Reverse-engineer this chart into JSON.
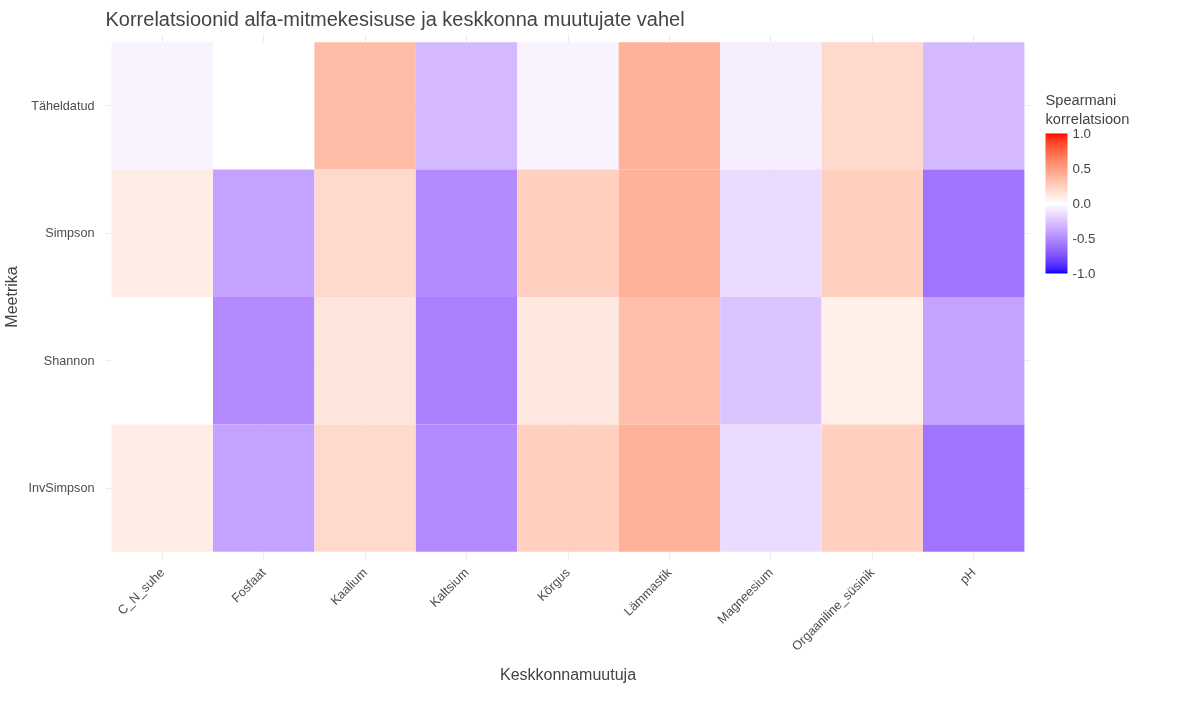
{
  "chart_data": {
    "type": "heatmap",
    "title": "Korrelatsioonid alfa-mitmekesisuse ja keskkonna muutujate vahel",
    "xlabel": "Keskkonnamuutuja",
    "ylabel": "Meetrika",
    "clabel": "Spearmani korrelatsioon",
    "categories": [
      "C_N_suhe",
      "Fosfaat",
      "Kaalium",
      "Kaltsium",
      "Kõrgus",
      "Lämmastik",
      "Magneesium",
      "Orgaaniline_süsinik",
      "pH"
    ],
    "y_categories": [
      "Täheldatud",
      "Simpson",
      "Shannon",
      "InvSimpson"
    ],
    "cells": [
      [
        -0.05,
        0.0,
        0.35,
        -0.3,
        -0.05,
        0.4,
        -0.07,
        0.2,
        -0.3
      ],
      [
        0.1,
        -0.4,
        0.2,
        -0.5,
        0.25,
        0.4,
        -0.15,
        0.25,
        -0.6
      ],
      [
        0.0,
        -0.5,
        0.13,
        -0.55,
        0.12,
        0.33,
        -0.25,
        0.08,
        -0.4
      ],
      [
        0.1,
        -0.4,
        0.2,
        -0.5,
        0.25,
        0.4,
        -0.15,
        0.25,
        -0.6
      ]
    ],
    "clim": [
      -1.0,
      1.0
    ],
    "cticks": [
      {
        "value": -1,
        "label": "-1.0"
      },
      {
        "value": -0.5,
        "label": "-0.5"
      },
      {
        "value": 0,
        "label": "0.0"
      },
      {
        "value": 0.5,
        "label": "0.5"
      },
      {
        "value": 1,
        "label": "1.0"
      }
    ],
    "grid": true
  }
}
